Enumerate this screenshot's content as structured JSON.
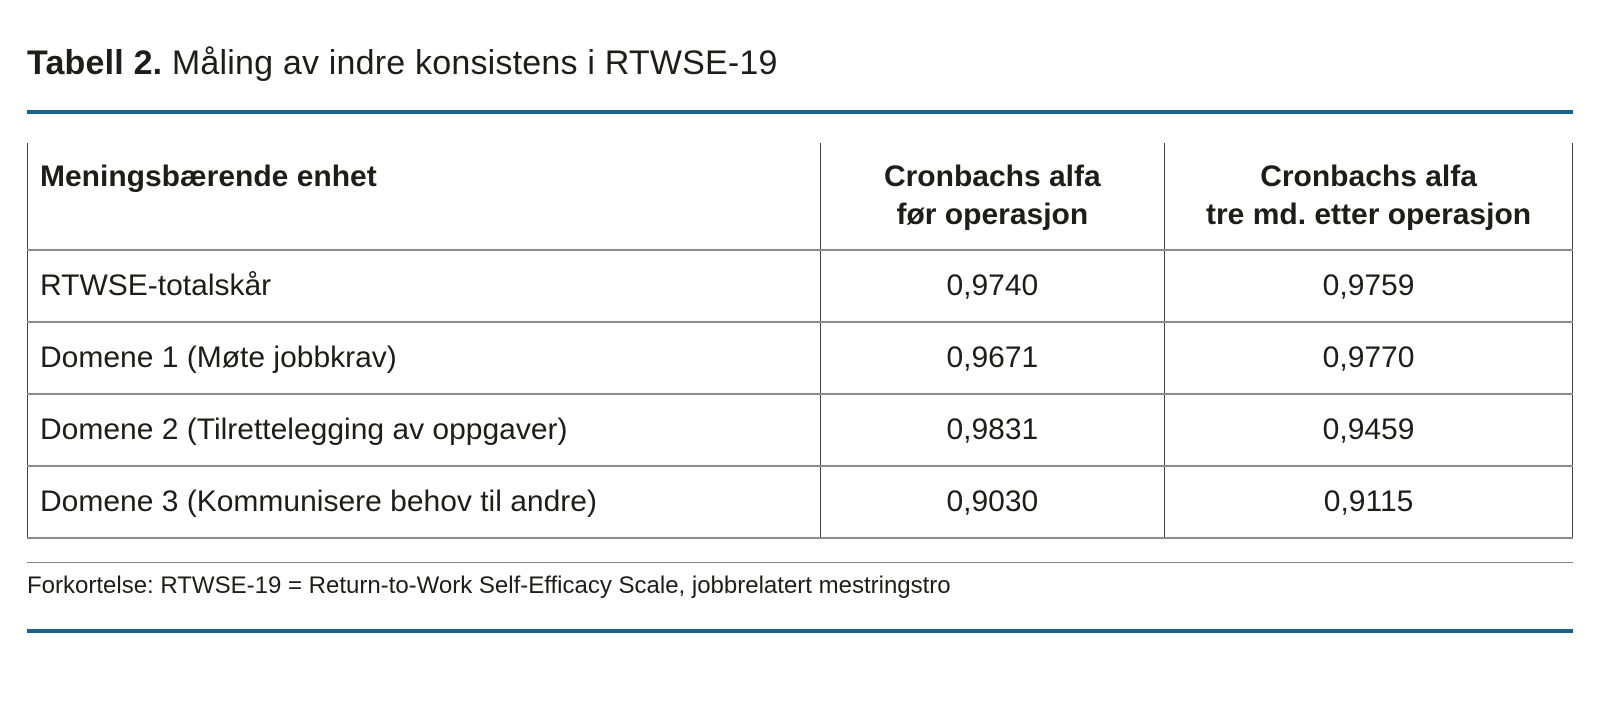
{
  "title": {
    "label": "Tabell 2.",
    "text": "Måling av indre konsistens i RTWSE-19"
  },
  "table": {
    "columns": [
      {
        "label": "Meningsbærende enhet"
      },
      {
        "line1": "Cronbachs alfa",
        "line2": "før operasjon"
      },
      {
        "line1": "Cronbachs alfa",
        "line2": "tre md. etter operasjon"
      }
    ],
    "rows": [
      {
        "unit": "RTWSE-totalskår",
        "alpha_pre": "0,9740",
        "alpha_post": "0,9759"
      },
      {
        "unit": "Domene 1 (Møte jobbkrav)",
        "alpha_pre": "0,9671",
        "alpha_post": "0,9770"
      },
      {
        "unit": "Domene 2 (Tilrettelegging av oppgaver)",
        "alpha_pre": "0,9831",
        "alpha_post": "0,9459"
      },
      {
        "unit": "Domene 3 (Kommunisere behov til andre)",
        "alpha_pre": "0,9030",
        "alpha_post": "0,9115"
      }
    ]
  },
  "footnote": "Forkortelse: RTWSE-19 = Return-to-Work Self-Efficacy Scale, jobbrelatert mestringstro",
  "colors": {
    "accent_blue": "#16648e",
    "row_divider_gray": "#8c8c8c",
    "column_divider_gray": "#3e3e3e",
    "text": "#1d1d1b"
  },
  "chart_data": {
    "type": "table",
    "title": "Tabell 2. Måling av indre konsistens i RTWSE-19",
    "columns": [
      "Meningsbærende enhet",
      "Cronbachs alfa før operasjon",
      "Cronbachs alfa tre md. etter operasjon"
    ],
    "rows": [
      [
        "RTWSE-totalskår",
        0.974,
        0.9759
      ],
      [
        "Domene 1 (Møte jobbkrav)",
        0.9671,
        0.977
      ],
      [
        "Domene 2 (Tilrettelegging av oppgaver)",
        0.9831,
        0.9459
      ],
      [
        "Domene 3 (Kommunisere behov til andre)",
        0.903,
        0.9115
      ]
    ],
    "footnote": "Forkortelse: RTWSE-19 = Return-to-Work Self-Efficacy Scale, jobbrelatert mestringstro"
  }
}
